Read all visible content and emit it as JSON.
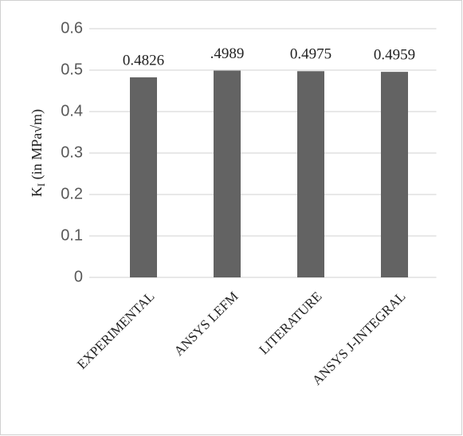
{
  "chart_data": {
    "type": "bar",
    "ylabel": {
      "main": "K",
      "sub": "I",
      "rest": " (in MPa√m)"
    },
    "categories": [
      "EXPERIMENTAL",
      "ANSYS LEFM",
      "LITERATURE",
      "ANSYS J-INTEGRAL"
    ],
    "values": [
      0.4826,
      0.4989,
      0.4975,
      0.4959
    ],
    "value_labels": [
      "0.4826",
      ".4989",
      "0.4975",
      "0.4959"
    ],
    "color": "#636363",
    "ylim": [
      0,
      0.6
    ],
    "yticks": [
      0,
      0.1,
      0.2,
      0.3,
      0.4,
      0.5,
      0.6
    ],
    "grid": true
  }
}
